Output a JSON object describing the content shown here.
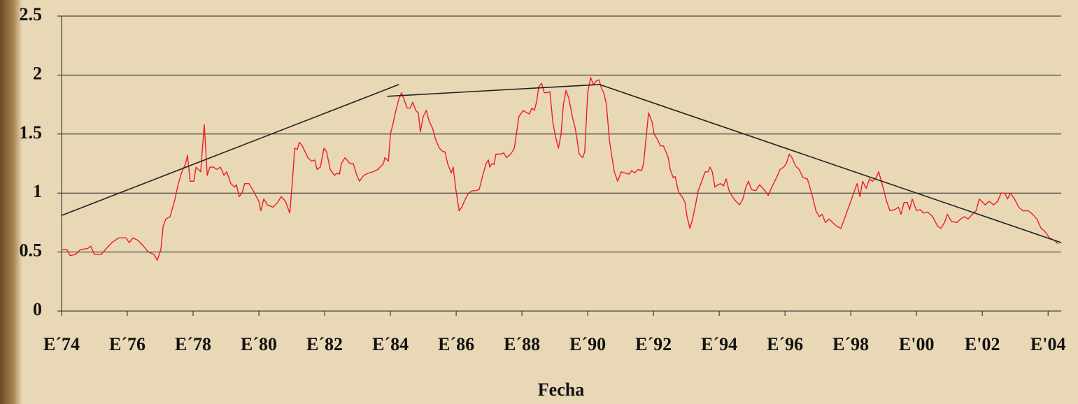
{
  "chart_data": {
    "type": "line",
    "x_label": "Fecha",
    "xlim": [
      1974,
      2004.4
    ],
    "xticks": [
      {
        "value": 1974,
        "label": "E´74"
      },
      {
        "value": 1976,
        "label": "E´76"
      },
      {
        "value": 1978,
        "label": "E´78"
      },
      {
        "value": 1980,
        "label": "E´80"
      },
      {
        "value": 1982,
        "label": "E´82"
      },
      {
        "value": 1984,
        "label": "E´84"
      },
      {
        "value": 1986,
        "label": "E´86"
      },
      {
        "value": 1988,
        "label": "E´88"
      },
      {
        "value": 1990,
        "label": "E´90"
      },
      {
        "value": 1992,
        "label": "E´92"
      },
      {
        "value": 1994,
        "label": "E´94"
      },
      {
        "value": 1996,
        "label": "E´96"
      },
      {
        "value": 1998,
        "label": "E´98"
      },
      {
        "value": 2000,
        "label": "E'00"
      },
      {
        "value": 2002,
        "label": "E'02"
      },
      {
        "value": 2004,
        "label": "E'04"
      }
    ],
    "ylim": [
      0,
      2.5
    ],
    "yticks": [
      0,
      0.5,
      1,
      1.5,
      2,
      2.5
    ],
    "grid": true,
    "series": [
      {
        "color": "#ee1c25",
        "x": [
          1974.0,
          1974.17,
          1974.26,
          1974.43,
          1974.57,
          1974.79,
          1974.89,
          1975.0,
          1975.21,
          1975.36,
          1975.53,
          1975.74,
          1975.96,
          1976.06,
          1976.17,
          1976.32,
          1976.49,
          1976.64,
          1976.81,
          1976.91,
          1977.02,
          1977.09,
          1977.17,
          1977.3,
          1977.45,
          1977.55,
          1977.66,
          1977.77,
          1977.83,
          1977.91,
          1978.02,
          1978.09,
          1978.23,
          1978.34,
          1978.43,
          1978.51,
          1978.62,
          1978.72,
          1978.83,
          1978.94,
          1979.02,
          1979.15,
          1979.26,
          1979.32,
          1979.4,
          1979.49,
          1979.57,
          1979.7,
          1979.83,
          1980.0,
          1980.06,
          1980.15,
          1980.26,
          1980.43,
          1980.57,
          1980.68,
          1980.81,
          1980.94,
          1981.02,
          1981.09,
          1981.17,
          1981.23,
          1981.32,
          1981.49,
          1981.6,
          1981.7,
          1981.77,
          1981.87,
          1981.98,
          1982.06,
          1982.17,
          1982.3,
          1982.38,
          1982.45,
          1982.51,
          1982.62,
          1982.77,
          1982.87,
          1982.98,
          1983.06,
          1983.19,
          1983.34,
          1983.47,
          1983.62,
          1983.79,
          1983.83,
          1983.94,
          1984.0,
          1984.09,
          1984.15,
          1984.26,
          1984.34,
          1984.43,
          1984.51,
          1984.6,
          1984.68,
          1984.77,
          1984.85,
          1984.91,
          1985.0,
          1985.09,
          1985.19,
          1985.28,
          1985.38,
          1985.49,
          1985.6,
          1985.66,
          1985.74,
          1985.85,
          1985.91,
          1985.98,
          1986.09,
          1986.17,
          1986.28,
          1986.38,
          1986.49,
          1986.6,
          1986.7,
          1986.81,
          1986.91,
          1986.98,
          1987.02,
          1987.09,
          1987.15,
          1987.21,
          1987.34,
          1987.45,
          1987.53,
          1987.66,
          1987.77,
          1987.83,
          1987.91,
          1988.04,
          1988.15,
          1988.23,
          1988.3,
          1988.38,
          1988.45,
          1988.51,
          1988.6,
          1988.68,
          1988.77,
          1988.85,
          1988.94,
          1989.02,
          1989.11,
          1989.19,
          1989.26,
          1989.34,
          1989.43,
          1989.53,
          1989.62,
          1989.68,
          1989.74,
          1989.85,
          1989.91,
          1990.0,
          1990.09,
          1990.17,
          1990.26,
          1990.34,
          1990.43,
          1990.49,
          1990.57,
          1990.66,
          1990.74,
          1990.81,
          1990.91,
          1991.02,
          1991.13,
          1991.26,
          1991.34,
          1991.43,
          1991.53,
          1991.64,
          1991.7,
          1991.77,
          1991.85,
          1991.96,
          1992.02,
          1992.13,
          1992.21,
          1992.3,
          1992.38,
          1992.45,
          1992.51,
          1992.6,
          1992.66,
          1992.77,
          1992.87,
          1992.96,
          1993.02,
          1993.11,
          1993.19,
          1993.28,
          1993.36,
          1993.47,
          1993.57,
          1993.66,
          1993.72,
          1993.79,
          1993.87,
          1993.96,
          1994.04,
          1994.13,
          1994.21,
          1994.3,
          1994.4,
          1994.51,
          1994.62,
          1994.72,
          1994.81,
          1994.89,
          1994.98,
          1995.11,
          1995.23,
          1995.36,
          1995.49,
          1995.6,
          1995.74,
          1995.85,
          1995.96,
          1996.04,
          1996.13,
          1996.21,
          1996.32,
          1996.43,
          1996.55,
          1996.68,
          1996.81,
          1996.94,
          1997.04,
          1997.13,
          1997.23,
          1997.34,
          1997.45,
          1997.57,
          1997.7,
          1997.83,
          1997.96,
          1998.09,
          1998.19,
          1998.28,
          1998.36,
          1998.47,
          1998.57,
          1998.66,
          1998.77,
          1998.85,
          1998.98,
          1999.09,
          1999.19,
          1999.34,
          1999.45,
          1999.53,
          1999.62,
          1999.72,
          1999.79,
          1999.87,
          2000.0,
          2000.11,
          2000.21,
          2000.34,
          2000.49,
          2000.64,
          2000.74,
          2000.85,
          2000.94,
          2001.06,
          2001.23,
          2001.34,
          2001.45,
          2001.57,
          2001.7,
          2001.81,
          2001.91,
          2002.09,
          2002.21,
          2002.34,
          2002.47,
          2002.57,
          2002.68,
          2002.77,
          2002.85,
          2002.98,
          2003.11,
          2003.23,
          2003.4,
          2003.53,
          2003.66,
          2003.79,
          2003.89,
          2004.04,
          2004.19,
          2004.3
        ],
        "values": [
          0.52,
          0.52,
          0.47,
          0.48,
          0.52,
          0.53,
          0.55,
          0.48,
          0.48,
          0.53,
          0.58,
          0.62,
          0.62,
          0.58,
          0.62,
          0.6,
          0.55,
          0.5,
          0.48,
          0.43,
          0.52,
          0.72,
          0.78,
          0.8,
          0.95,
          1.08,
          1.18,
          1.25,
          1.32,
          1.1,
          1.1,
          1.22,
          1.18,
          1.58,
          1.15,
          1.22,
          1.22,
          1.2,
          1.22,
          1.15,
          1.18,
          1.08,
          1.05,
          1.07,
          0.97,
          1.0,
          1.08,
          1.08,
          1.02,
          0.93,
          0.85,
          0.95,
          0.9,
          0.88,
          0.92,
          0.97,
          0.93,
          0.83,
          1.1,
          1.38,
          1.37,
          1.43,
          1.4,
          1.3,
          1.27,
          1.28,
          1.2,
          1.22,
          1.38,
          1.35,
          1.2,
          1.15,
          1.17,
          1.16,
          1.25,
          1.3,
          1.25,
          1.25,
          1.15,
          1.1,
          1.15,
          1.17,
          1.18,
          1.2,
          1.25,
          1.3,
          1.27,
          1.5,
          1.6,
          1.68,
          1.8,
          1.85,
          1.78,
          1.72,
          1.72,
          1.77,
          1.7,
          1.68,
          1.52,
          1.65,
          1.7,
          1.6,
          1.55,
          1.45,
          1.38,
          1.35,
          1.35,
          1.25,
          1.17,
          1.22,
          1.05,
          0.85,
          0.88,
          0.95,
          1.0,
          1.02,
          1.02,
          1.03,
          1.15,
          1.25,
          1.28,
          1.22,
          1.25,
          1.24,
          1.33,
          1.33,
          1.34,
          1.3,
          1.33,
          1.38,
          1.5,
          1.65,
          1.7,
          1.68,
          1.67,
          1.72,
          1.7,
          1.78,
          1.9,
          1.93,
          1.85,
          1.85,
          1.86,
          1.6,
          1.48,
          1.38,
          1.5,
          1.75,
          1.87,
          1.8,
          1.65,
          1.55,
          1.45,
          1.33,
          1.3,
          1.35,
          1.85,
          1.98,
          1.92,
          1.95,
          1.96,
          1.88,
          1.85,
          1.75,
          1.45,
          1.3,
          1.18,
          1.1,
          1.18,
          1.17,
          1.16,
          1.19,
          1.17,
          1.2,
          1.19,
          1.25,
          1.45,
          1.68,
          1.6,
          1.5,
          1.45,
          1.4,
          1.4,
          1.35,
          1.3,
          1.2,
          1.13,
          1.14,
          1.0,
          0.97,
          0.92,
          0.8,
          0.7,
          0.78,
          0.9,
          1.02,
          1.1,
          1.18,
          1.18,
          1.22,
          1.18,
          1.05,
          1.07,
          1.08,
          1.06,
          1.12,
          1.02,
          0.97,
          0.93,
          0.9,
          0.95,
          1.05,
          1.1,
          1.03,
          1.02,
          1.07,
          1.03,
          0.98,
          1.05,
          1.13,
          1.2,
          1.22,
          1.25,
          1.33,
          1.3,
          1.23,
          1.2,
          1.13,
          1.12,
          1.0,
          0.85,
          0.8,
          0.82,
          0.75,
          0.78,
          0.75,
          0.72,
          0.7,
          0.8,
          0.9,
          1.0,
          1.08,
          0.97,
          1.1,
          1.04,
          1.12,
          1.1,
          1.13,
          1.18,
          1.05,
          0.93,
          0.85,
          0.86,
          0.88,
          0.82,
          0.92,
          0.92,
          0.86,
          0.95,
          0.85,
          0.86,
          0.83,
          0.84,
          0.8,
          0.72,
          0.7,
          0.75,
          0.82,
          0.76,
          0.75,
          0.78,
          0.8,
          0.78,
          0.82,
          0.85,
          0.95,
          0.9,
          0.93,
          0.9,
          0.93,
          1.0,
          1.0,
          0.95,
          1.0,
          0.95,
          0.88,
          0.85,
          0.85,
          0.82,
          0.78,
          0.7,
          0.68,
          0.62,
          0.6,
          0.57
        ]
      },
      {
        "color": "#222222",
        "x": [
          1974,
          1984.26
        ],
        "values": [
          0.81,
          1.92
        ]
      },
      {
        "color": "#222222",
        "x": [
          1983.9,
          1990.36
        ],
        "values": [
          1.82,
          1.92
        ]
      },
      {
        "color": "#222222",
        "x": [
          1990.36,
          2004.4
        ],
        "values": [
          1.92,
          0.58
        ]
      }
    ]
  }
}
